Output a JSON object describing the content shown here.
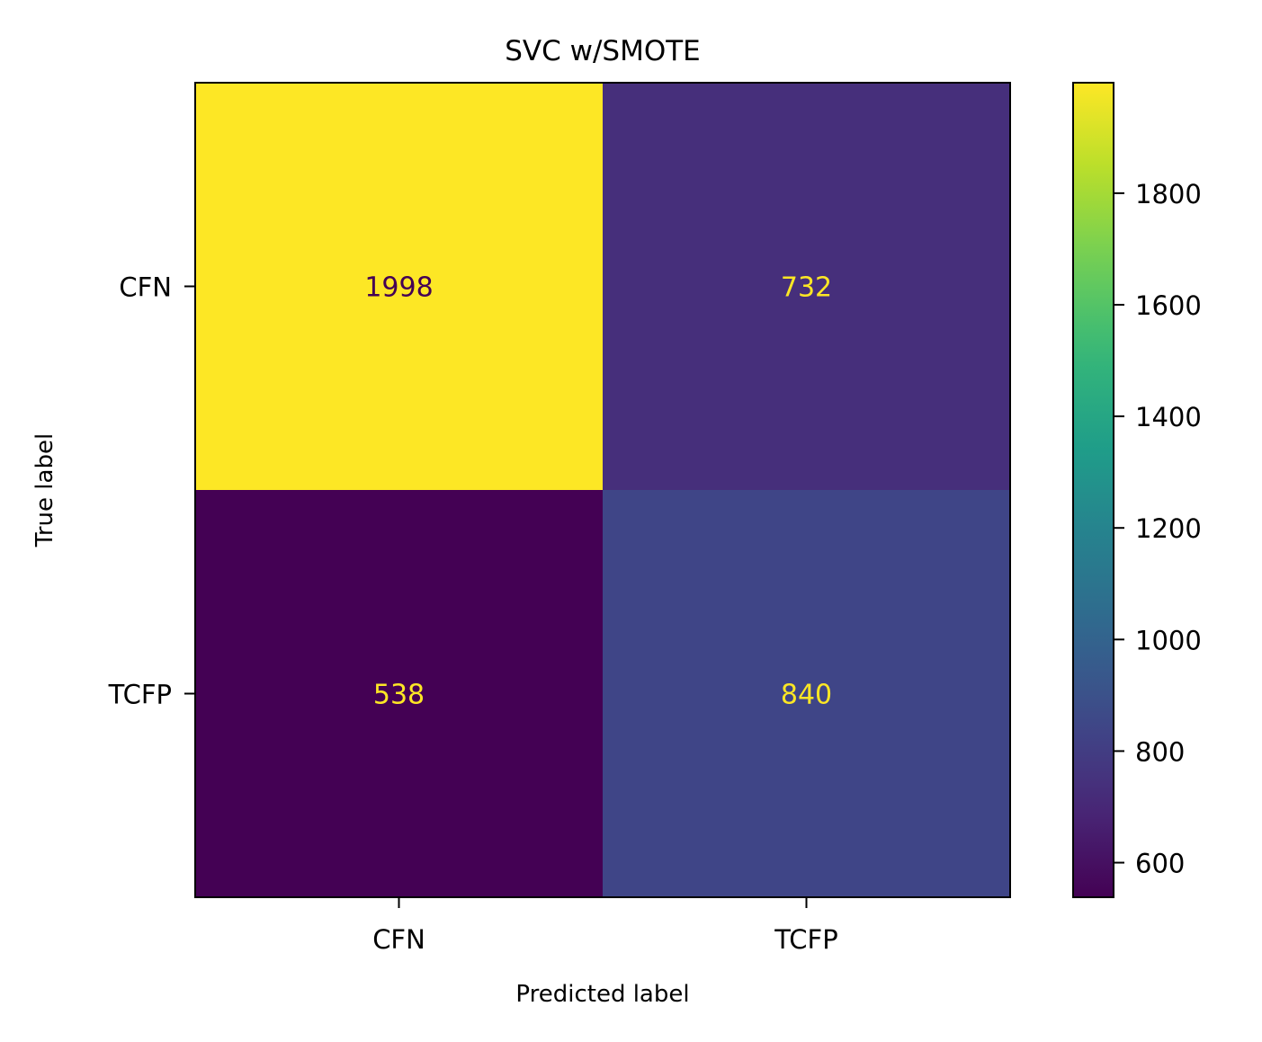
{
  "chart_data": {
    "type": "heatmap",
    "title": "SVC w/SMOTE",
    "xlabel": "Predicted label",
    "ylabel": "True label",
    "x_categories": [
      "CFN",
      "TCFP"
    ],
    "y_categories": [
      "CFN",
      "TCFP"
    ],
    "values": [
      [
        1998,
        732
      ],
      [
        538,
        840
      ]
    ],
    "colormap": "viridis",
    "colorbar": {
      "range": [
        538,
        1998
      ],
      "ticks": [
        600,
        800,
        1000,
        1200,
        1400,
        1600,
        1800
      ],
      "tick_labels": [
        "600",
        "800",
        "1000",
        "1200",
        "1400",
        "1600",
        "1800"
      ]
    },
    "text_colors": {
      "on_dark": "#fde725",
      "on_light": "#440154"
    },
    "grid": false
  }
}
